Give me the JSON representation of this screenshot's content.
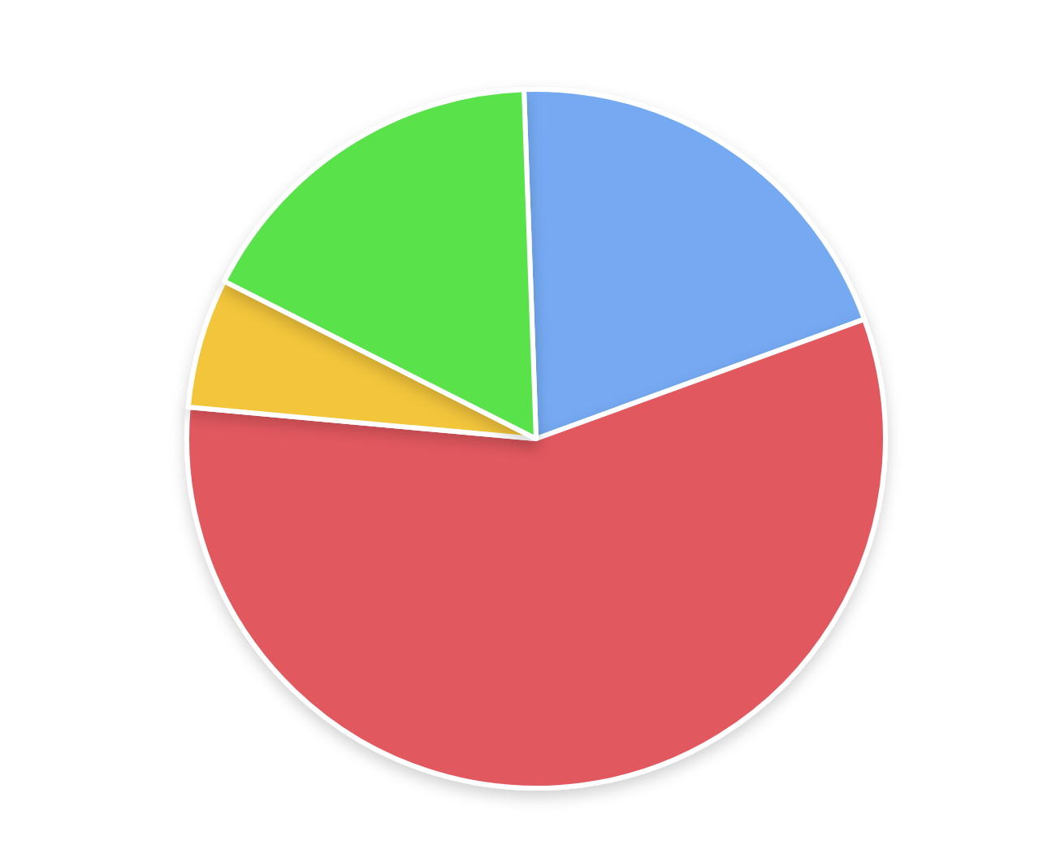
{
  "chart_data": {
    "type": "pie",
    "values": [
      20,
      57,
      6,
      17
    ],
    "colors": [
      "#74a9f2",
      "#e2595f",
      "#f2c53a",
      "#5ae24c"
    ]
  }
}
